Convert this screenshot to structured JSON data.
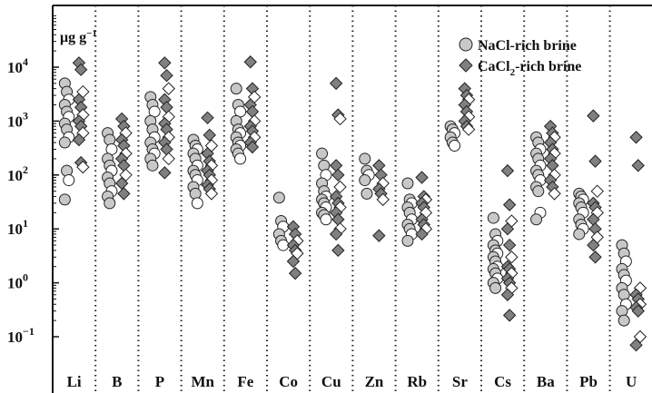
{
  "chart_data": {
    "type": "scatter",
    "title": "",
    "xlabel": "",
    "ylabel": "",
    "y_unit": {
      "base": "μg g",
      "sup": "−1"
    },
    "y_scale": "log",
    "ylim": [
      0.05,
      60000
    ],
    "y_ticks": [
      {
        "value": 0.1,
        "base": "10",
        "exp": "−1"
      },
      {
        "value": 1,
        "base": "10",
        "exp": "0"
      },
      {
        "value": 10,
        "base": "10",
        "exp": "1"
      },
      {
        "value": 100,
        "base": "10",
        "exp": "2"
      },
      {
        "value": 1000,
        "base": "10",
        "exp": "3"
      },
      {
        "value": 10000,
        "base": "10",
        "exp": "4"
      }
    ],
    "grid": "dotted vertical separators between elements",
    "legend_position": "top-right",
    "categories": [
      "Li",
      "B",
      "P",
      "Mn",
      "Fe",
      "Co",
      "Cu",
      "Zn",
      "Rb",
      "Sr",
      "Cs",
      "Ba",
      "Pb",
      "U"
    ],
    "series": [
      {
        "name_base": "NaCl-rich brine",
        "marker": "circle",
        "fill_color": "#c8c8c8",
        "values": {
          "Li": [
            5000,
            3500,
            2500,
            2000,
            1500,
            1200,
            900,
            700,
            500,
            400,
            120,
            80,
            35
          ],
          "B": [
            600,
            450,
            300,
            200,
            150,
            120,
            90,
            70,
            50,
            40,
            30
          ],
          "P": [
            2800,
            2000,
            1500,
            1000,
            700,
            500,
            400,
            300,
            250,
            200,
            150
          ],
          "Mn": [
            450,
            350,
            300,
            250,
            200,
            150,
            120,
            100,
            80,
            60,
            45,
            30
          ],
          "Fe": [
            4000,
            2000,
            1500,
            1000,
            700,
            600,
            500,
            400,
            350,
            300,
            250,
            200
          ],
          "Co": [
            38,
            14,
            11,
            8,
            6,
            5
          ],
          "Cu": [
            250,
            150,
            100,
            70,
            50,
            40,
            35,
            30,
            25,
            20,
            18,
            15
          ],
          "Zn": [
            200,
            120,
            100,
            80,
            45
          ],
          "Rb": [
            70,
            35,
            30,
            25,
            20,
            15,
            12,
            10,
            8,
            6
          ],
          "Sr": [
            800,
            700,
            600,
            500,
            400,
            350
          ],
          "Cs": [
            16,
            8,
            6,
            5,
            4,
            3.5,
            3,
            2.5,
            2,
            1.8,
            1.5,
            1.2,
            1,
            0.8
          ],
          "Ba": [
            500,
            400,
            300,
            250,
            200,
            150,
            120,
            100,
            80,
            60,
            50,
            20,
            15
          ],
          "Pb": [
            45,
            40,
            35,
            30,
            25,
            20,
            15,
            12,
            10,
            8
          ],
          "U": [
            5,
            3.5,
            2.5,
            1.8,
            1.4,
            1.1,
            0.8,
            0.6,
            0.4,
            0.3,
            0.2
          ]
        }
      },
      {
        "name_base": "CaCl",
        "name_sub": "2",
        "name_rest": "-rich brine",
        "marker": "diamond",
        "fill_color": "#808080",
        "values": {
          "Li": [
            12000,
            9000,
            3500,
            2500,
            1800,
            1300,
            1000,
            800,
            600,
            450,
            170,
            140
          ],
          "B": [
            1100,
            800,
            600,
            450,
            350,
            250,
            200,
            150,
            100,
            70,
            45
          ],
          "P": [
            12000,
            7000,
            4000,
            2500,
            1800,
            1200,
            900,
            700,
            500,
            400,
            300,
            200,
            110
          ],
          "Mn": [
            1150,
            550,
            350,
            250,
            180,
            150,
            120,
            100,
            80,
            65,
            55,
            45
          ],
          "Fe": [
            12500,
            4000,
            2800,
            2000,
            1500,
            1000,
            800,
            650,
            500,
            400,
            330
          ],
          "Co": [
            11,
            8,
            6,
            5,
            4,
            3.5,
            2.5,
            1.5
          ],
          "Cu": [
            5000,
            1300,
            1100,
            150,
            100,
            60,
            40,
            30,
            25,
            20,
            15,
            10,
            8,
            4
          ],
          "Zn": [
            150,
            100,
            70,
            55,
            45,
            35,
            7.5
          ],
          "Rb": [
            90,
            40,
            35,
            30,
            25,
            20,
            15,
            12,
            10,
            8
          ],
          "Sr": [
            4000,
            3000,
            2500,
            2000,
            1500,
            1200,
            1000,
            800,
            700
          ],
          "Cs": [
            120,
            28,
            14,
            10,
            5,
            3,
            2,
            1.8,
            1.5,
            1.2,
            1,
            0.8,
            0.6,
            0.25
          ],
          "Ba": [
            800,
            600,
            500,
            400,
            300,
            250,
            200,
            150,
            100,
            80,
            60,
            45
          ],
          "Pb": [
            1250,
            180,
            50,
            30,
            25,
            20,
            15,
            10,
            7,
            5,
            3
          ],
          "U": [
            500,
            150,
            0.8,
            0.6,
            0.5,
            0.4,
            0.35,
            0.3,
            0.1,
            0.07
          ]
        }
      }
    ]
  }
}
